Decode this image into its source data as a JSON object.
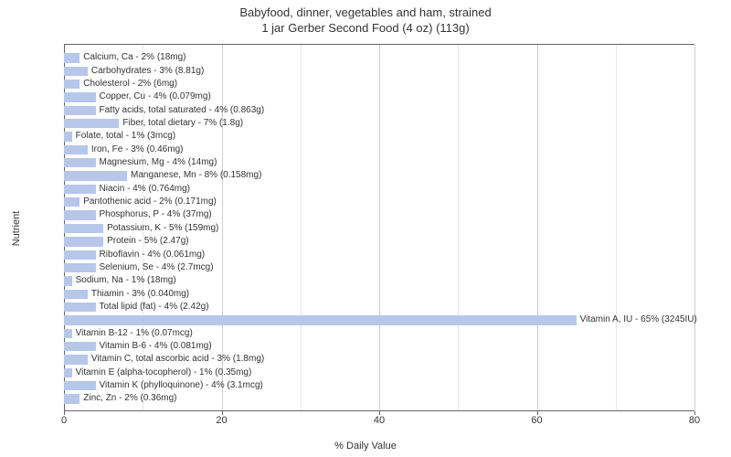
{
  "chart": {
    "type": "bar-horizontal",
    "title_line1": "Babyfood, dinner, vegetables and ham, strained",
    "title_line2": "1 jar Gerber Second Food (4 oz) (113g)",
    "title_fontsize": 13,
    "title_color": "#333333",
    "xlabel": "% Daily Value",
    "ylabel": "Nutrient",
    "axis_label_fontsize": 11,
    "axis_label_color": "#333333",
    "bar_label_fontsize": 10,
    "bar_label_color": "#333333",
    "background_color": "#ffffff",
    "bar_color": "#b6c7e9",
    "grid_colors": {
      "zero": "#666666",
      "major": "#cccccc",
      "mid": "#e8e8e8"
    },
    "xlim": [
      0,
      80
    ],
    "xticks": [
      0,
      20,
      40,
      60,
      80
    ],
    "xtick_fontsize": 11,
    "nutrients": [
      {
        "label": "Calcium, Ca - 2% (18mg)",
        "value": 2
      },
      {
        "label": "Carbohydrates - 3% (8.81g)",
        "value": 3
      },
      {
        "label": "Cholesterol - 2% (6mg)",
        "value": 2
      },
      {
        "label": "Copper, Cu - 4% (0.079mg)",
        "value": 4
      },
      {
        "label": "Fatty acids, total saturated - 4% (0.863g)",
        "value": 4
      },
      {
        "label": "Fiber, total dietary - 7% (1.8g)",
        "value": 7
      },
      {
        "label": "Folate, total - 1% (3mcg)",
        "value": 1
      },
      {
        "label": "Iron, Fe - 3% (0.46mg)",
        "value": 3
      },
      {
        "label": "Magnesium, Mg - 4% (14mg)",
        "value": 4
      },
      {
        "label": "Manganese, Mn - 8% (0.158mg)",
        "value": 8
      },
      {
        "label": "Niacin - 4% (0.764mg)",
        "value": 4
      },
      {
        "label": "Pantothenic acid - 2% (0.171mg)",
        "value": 2
      },
      {
        "label": "Phosphorus, P - 4% (37mg)",
        "value": 4
      },
      {
        "label": "Potassium, K - 5% (159mg)",
        "value": 5
      },
      {
        "label": "Protein - 5% (2.47g)",
        "value": 5
      },
      {
        "label": "Riboflavin - 4% (0.061mg)",
        "value": 4
      },
      {
        "label": "Selenium, Se - 4% (2.7mcg)",
        "value": 4
      },
      {
        "label": "Sodium, Na - 1% (18mg)",
        "value": 1
      },
      {
        "label": "Thiamin - 3% (0.040mg)",
        "value": 3
      },
      {
        "label": "Total lipid (fat) - 4% (2.42g)",
        "value": 4
      },
      {
        "label": "Vitamin A, IU - 65% (3245IU)",
        "value": 65
      },
      {
        "label": "Vitamin B-12 - 1% (0.07mcg)",
        "value": 1
      },
      {
        "label": "Vitamin B-6 - 4% (0.081mg)",
        "value": 4
      },
      {
        "label": "Vitamin C, total ascorbic acid - 3% (1.8mg)",
        "value": 3
      },
      {
        "label": "Vitamin E (alpha-tocopherol) - 1% (0.35mg)",
        "value": 1
      },
      {
        "label": "Vitamin K (phylloquinone) - 4% (3.1mcg)",
        "value": 4
      },
      {
        "label": "Zinc, Zn - 2% (0.36mg)",
        "value": 2
      }
    ]
  }
}
